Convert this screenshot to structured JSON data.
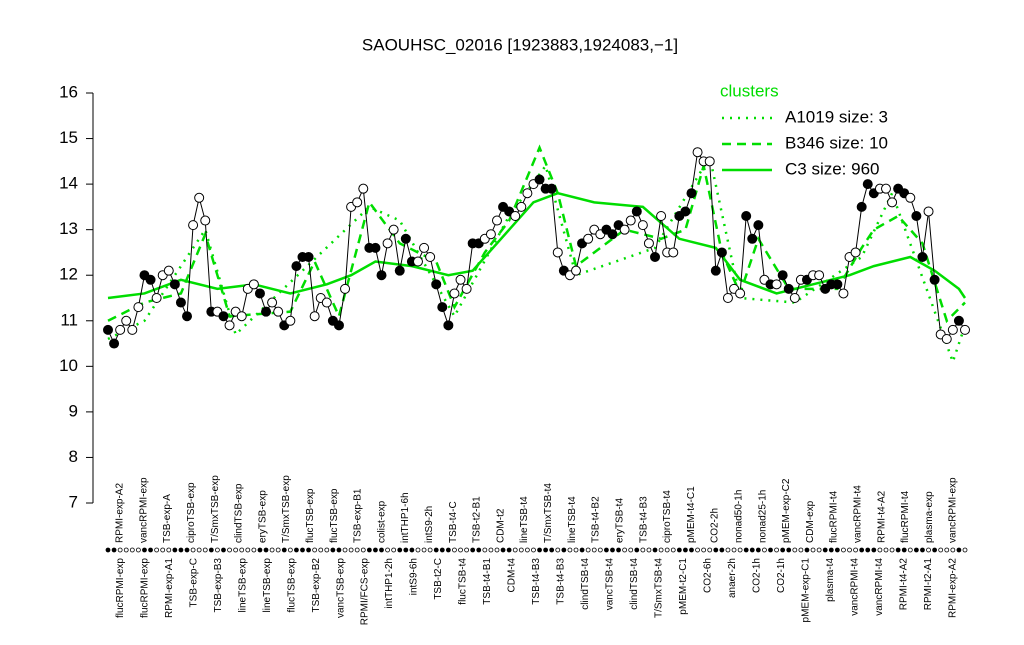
{
  "chart_data": {
    "type": "line",
    "title": "SAOUHSC_02016 [1923883,1924083,−1]",
    "ylim": [
      7,
      16
    ],
    "yticks": [
      7,
      8,
      9,
      10,
      11,
      12,
      13,
      14,
      15,
      16
    ],
    "legend_title": "clusters",
    "legend_title_color": "#00dd00",
    "legend": "top-right",
    "values": [
      10.8,
      10.5,
      10.8,
      11.0,
      10.8,
      11.3,
      12.0,
      11.9,
      11.5,
      12.0,
      12.1,
      11.8,
      11.4,
      11.1,
      13.1,
      13.7,
      13.2,
      11.2,
      11.2,
      11.1,
      10.9,
      11.2,
      11.1,
      11.7,
      11.8,
      11.6,
      11.2,
      11.4,
      11.2,
      10.9,
      11.0,
      12.2,
      12.4,
      12.4,
      11.1,
      11.5,
      11.4,
      11.0,
      10.9,
      11.7,
      13.5,
      13.6,
      13.9,
      12.6,
      12.6,
      12.0,
      12.7,
      13.0,
      12.1,
      12.8,
      12.3,
      12.3,
      12.6,
      12.4,
      11.8,
      11.3,
      10.9,
      11.6,
      11.9,
      11.7,
      12.7,
      12.7,
      12.8,
      12.9,
      13.2,
      13.5,
      13.4,
      13.3,
      13.5,
      13.8,
      14.0,
      14.1,
      13.9,
      13.9,
      12.5,
      12.1,
      12.0,
      12.1,
      12.7,
      12.8,
      13.0,
      12.9,
      13.0,
      12.9,
      13.1,
      13.0,
      13.2,
      13.4,
      13.1,
      12.7,
      12.4,
      13.3,
      12.5,
      12.5,
      13.3,
      13.4,
      13.8,
      14.7,
      14.5,
      14.5,
      12.1,
      12.5,
      11.5,
      11.7,
      11.6,
      13.3,
      12.8,
      13.1,
      11.9,
      11.8,
      11.8,
      12.0,
      11.7,
      11.5,
      11.9,
      11.9,
      12.0,
      12.0,
      11.7,
      11.8,
      11.8,
      11.6,
      12.4,
      12.5,
      13.5,
      14.0,
      13.8,
      13.9,
      13.9,
      13.6,
      13.9,
      13.8,
      13.7,
      13.3,
      12.4,
      13.4,
      11.9,
      10.7,
      10.6,
      10.8,
      11.0,
      10.8
    ],
    "filled": [
      1,
      1,
      0,
      0,
      0,
      0,
      1,
      1,
      0,
      0,
      0,
      1,
      1,
      1,
      0,
      0,
      0,
      1,
      0,
      1,
      0,
      0,
      0,
      0,
      0,
      1,
      1,
      0,
      0,
      1,
      0,
      1,
      1,
      1,
      0,
      0,
      0,
      1,
      1,
      0,
      0,
      0,
      0,
      1,
      1,
      1,
      0,
      0,
      1,
      1,
      1,
      0,
      0,
      0,
      1,
      1,
      1,
      0,
      0,
      0,
      1,
      1,
      0,
      0,
      0,
      1,
      1,
      0,
      0,
      0,
      0,
      1,
      1,
      1,
      0,
      1,
      0,
      0,
      1,
      0,
      0,
      0,
      1,
      1,
      1,
      0,
      0,
      1,
      0,
      0,
      1,
      0,
      0,
      0,
      1,
      1,
      1,
      0,
      0,
      0,
      1,
      1,
      0,
      0,
      0,
      1,
      1,
      1,
      0,
      1,
      0,
      1,
      1,
      0,
      0,
      1,
      0,
      0,
      1,
      1,
      1,
      0,
      0,
      0,
      1,
      1,
      1,
      0,
      0,
      0,
      1,
      1,
      0,
      1,
      1,
      0,
      1,
      0,
      0,
      0,
      1,
      0
    ],
    "series": [
      {
        "name": "A1019 size: 3",
        "color": "#00dd00",
        "style": "dotted",
        "x": [
          0,
          6,
          16,
          21,
          32,
          43,
          48,
          57,
          66,
          72,
          77,
          90,
          99,
          104,
          113,
          124,
          129,
          139,
          141
        ],
        "values": [
          10.6,
          11.0,
          13.0,
          10.7,
          12.1,
          13.5,
          13.2,
          11.1,
          13.3,
          14.4,
          12.0,
          12.6,
          14.6,
          11.5,
          11.4,
          12.4,
          13.8,
          10.1,
          10.9
        ]
      },
      {
        "name": "B346 size: 10",
        "color": "#00dd00",
        "style": "dashed",
        "x": [
          0,
          6,
          12,
          16,
          20,
          30,
          34,
          38,
          43,
          48,
          54,
          57,
          62,
          66,
          71,
          74,
          77,
          85,
          91,
          95,
          98,
          101,
          104,
          107,
          112,
          120,
          124,
          126,
          130,
          134,
          138,
          141
        ],
        "values": [
          11.0,
          11.4,
          11.6,
          12.9,
          11.1,
          11.2,
          12.3,
          11.1,
          13.6,
          12.7,
          12.3,
          11.3,
          12.5,
          13.2,
          14.8,
          13.8,
          12.2,
          13.0,
          12.8,
          13.0,
          14.4,
          12.5,
          11.6,
          12.8,
          11.7,
          11.7,
          12.6,
          13.0,
          13.3,
          12.7,
          11.0,
          11.4
        ]
      },
      {
        "name": "C3 size: 960",
        "color": "#00dd00",
        "style": "solid",
        "x": [
          0,
          6,
          12,
          18,
          24,
          30,
          36,
          40,
          44,
          50,
          56,
          60,
          66,
          70,
          74,
          80,
          88,
          94,
          100,
          104,
          110,
          116,
          122,
          126,
          132,
          136,
          140,
          141
        ],
        "values": [
          11.5,
          11.6,
          11.9,
          11.7,
          11.8,
          11.6,
          11.8,
          12.0,
          12.3,
          12.2,
          12.0,
          12.1,
          13.0,
          13.6,
          13.8,
          13.6,
          13.5,
          12.8,
          12.6,
          11.9,
          11.6,
          11.8,
          12.0,
          12.2,
          12.4,
          12.1,
          11.7,
          11.5
        ]
      }
    ],
    "top_labels": [
      "RPMI-exp-A2",
      "vancRPMI-exp",
      "TSB-exp-A",
      "ciproTSB-exp",
      "T/SmxTSB-exp",
      "clindTSB-exp",
      "eryTSB-exp",
      "T/SmxTSB-exp",
      "flucTSB-exp",
      "flucTSB-exp",
      "TSB-exp-B1",
      "colist-exp",
      "intTHP1-6h",
      "intS9-2h",
      "TSB-t4-C",
      "TSB-t2-B1",
      "CDM-t2",
      "lineTSB-t4",
      "T/SmxTSB-t4",
      "lineTSB-t4",
      "TSB-t4-B2",
      "eryTSB-t4",
      "TSB-t4-B3",
      "ciproTSB-t4",
      "pMEM-t4-C1",
      "CO2-2h",
      "nonad50-1h",
      "nonad25-1h",
      "pMEM-exp-C2",
      "CDM-exp",
      "flucRPMI-t4",
      "vancRPMI-t4",
      "RPMI-t4-A2",
      "flucRPMI-t4",
      "plasma-exp",
      "vancRPMI-exp"
    ],
    "bottom_labels": [
      "flucRPMI-exp",
      "flucRPMI-exp",
      "RPMI-exp-A1",
      "TSB-exp-C",
      "TSB-exp-B3",
      "lineTSB-exp",
      "lineTSB-exp",
      "flucTSB-exp",
      "TSB-exp-B2",
      "vancTSB-exp",
      "RPMI/FCS-exp",
      "intTHP1-2h",
      "intS9-6h",
      "TSB-t2-C",
      "flucTSB-t4",
      "TSB-t4-B1",
      "CDM-t4",
      "TSB-t4-B3",
      "TSB-t4-B3",
      "clindTSB-t4",
      "vancTSB-t4",
      "clindTSB-t4",
      "T/SmxTSB-t4",
      "pMEM-t2-C1",
      "CO2-6h",
      "anaer-2h",
      "CO2-1h",
      "CO2-1h",
      "pMEM-exp-C1",
      "plasma-t4",
      "vancRPMI-t4",
      "vancRPMI-t4",
      "RPMI-t4-A2",
      "RPMI-t2-A1",
      "RPMI-exp-A2"
    ]
  }
}
